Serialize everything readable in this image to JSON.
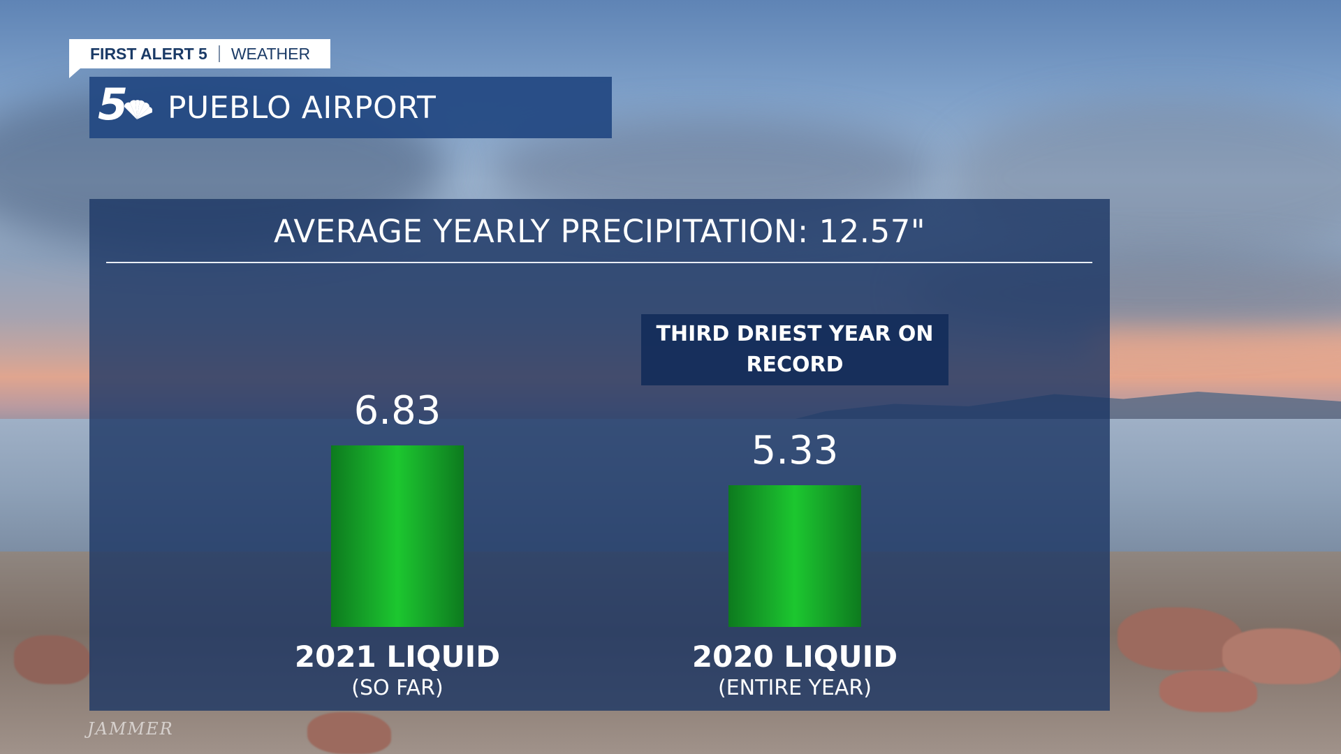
{
  "branding": {
    "station": "FIRST ALERT 5",
    "section": "WEATHER"
  },
  "location": {
    "title": "PUEBLO AIRPORT"
  },
  "chart_data": {
    "type": "bar",
    "title": "AVERAGE YEARLY PRECIPITATION: 12.57\"",
    "categories": [
      "2021 LIQUID",
      "2020 LIQUID"
    ],
    "sublabels": [
      "(SO FAR)",
      "(ENTIRE YEAR)"
    ],
    "values": [
      6.83,
      5.33
    ],
    "value_labels": [
      "6.83",
      "5.33"
    ],
    "annotation": "THIRD DRIEST YEAR ON RECORD",
    "grid": false,
    "colors": {
      "bar": "#1cc72f",
      "panel": "#1c3664",
      "text": "#ffffff"
    }
  },
  "watermark": "JAMMER"
}
